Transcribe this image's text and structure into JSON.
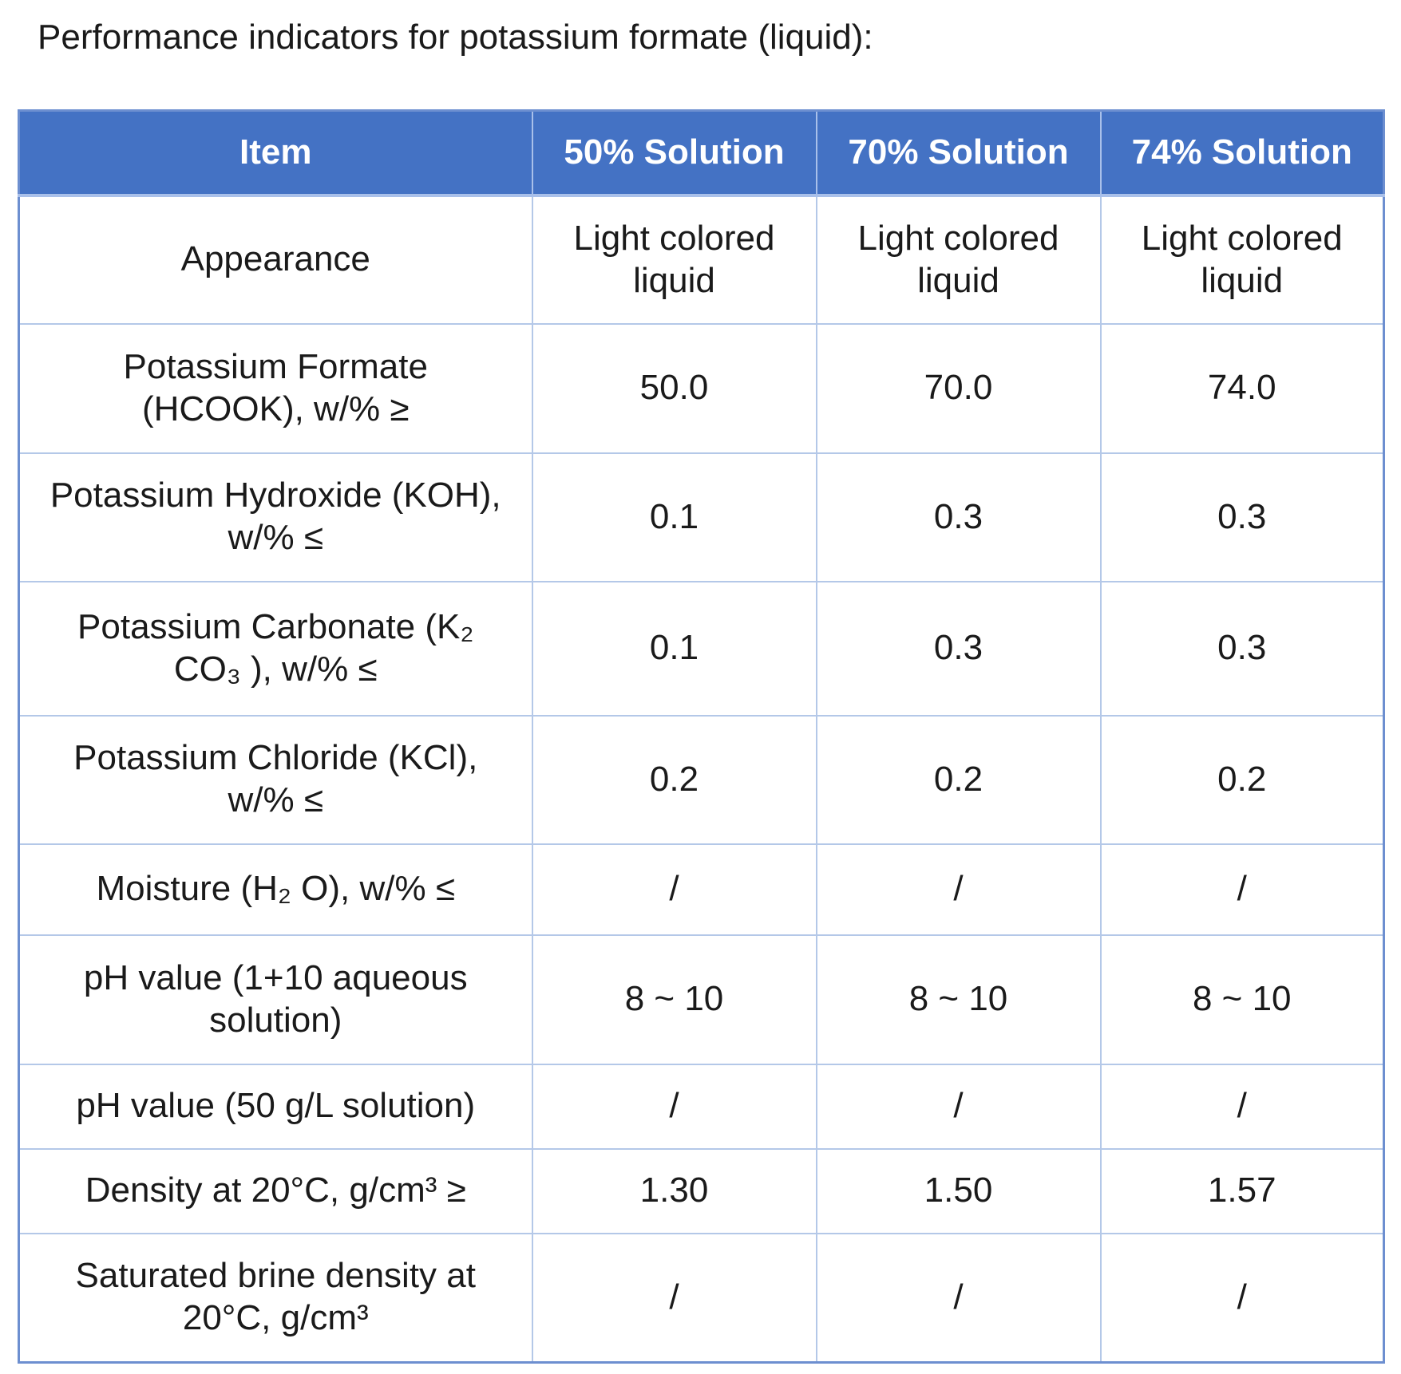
{
  "title": "Performance indicators for potassium formate (liquid):",
  "table": {
    "header": [
      "Item",
      "50% Solution",
      "70% Solution",
      "74% Solution"
    ],
    "rows": [
      [
        "Appearance",
        "Light colored liquid",
        "Light colored liquid",
        "Light colored liquid"
      ],
      [
        "Potassium Formate (HCOOK), w/% ≥",
        "50.0",
        "70.0",
        "74.0"
      ],
      [
        "Potassium Hydroxide (KOH), w/% ≤",
        "0.1",
        "0.3",
        "0.3"
      ],
      [
        "Potassium Carbonate (K₂  CO₃  ), w/% ≤",
        "0.1",
        "0.3",
        "0.3"
      ],
      [
        "Potassium Chloride (KCl), w/% ≤",
        "0.2",
        "0.2",
        "0.2"
      ],
      [
        "Moisture (H₂  O), w/% ≤",
        "/",
        "/",
        "/"
      ],
      [
        "pH value (1+10 aqueous solution)",
        "8 ~ 10",
        "8 ~ 10",
        "8 ~ 10"
      ],
      [
        "pH value (50 g/L solution)",
        "/",
        "/",
        "/"
      ],
      [
        "Density at 20°C, g/cm³ ≥",
        "1.30",
        "1.50",
        "1.57"
      ],
      [
        "Saturated brine density at 20°C, g/cm³",
        "/",
        "/",
        "/"
      ]
    ]
  }
}
